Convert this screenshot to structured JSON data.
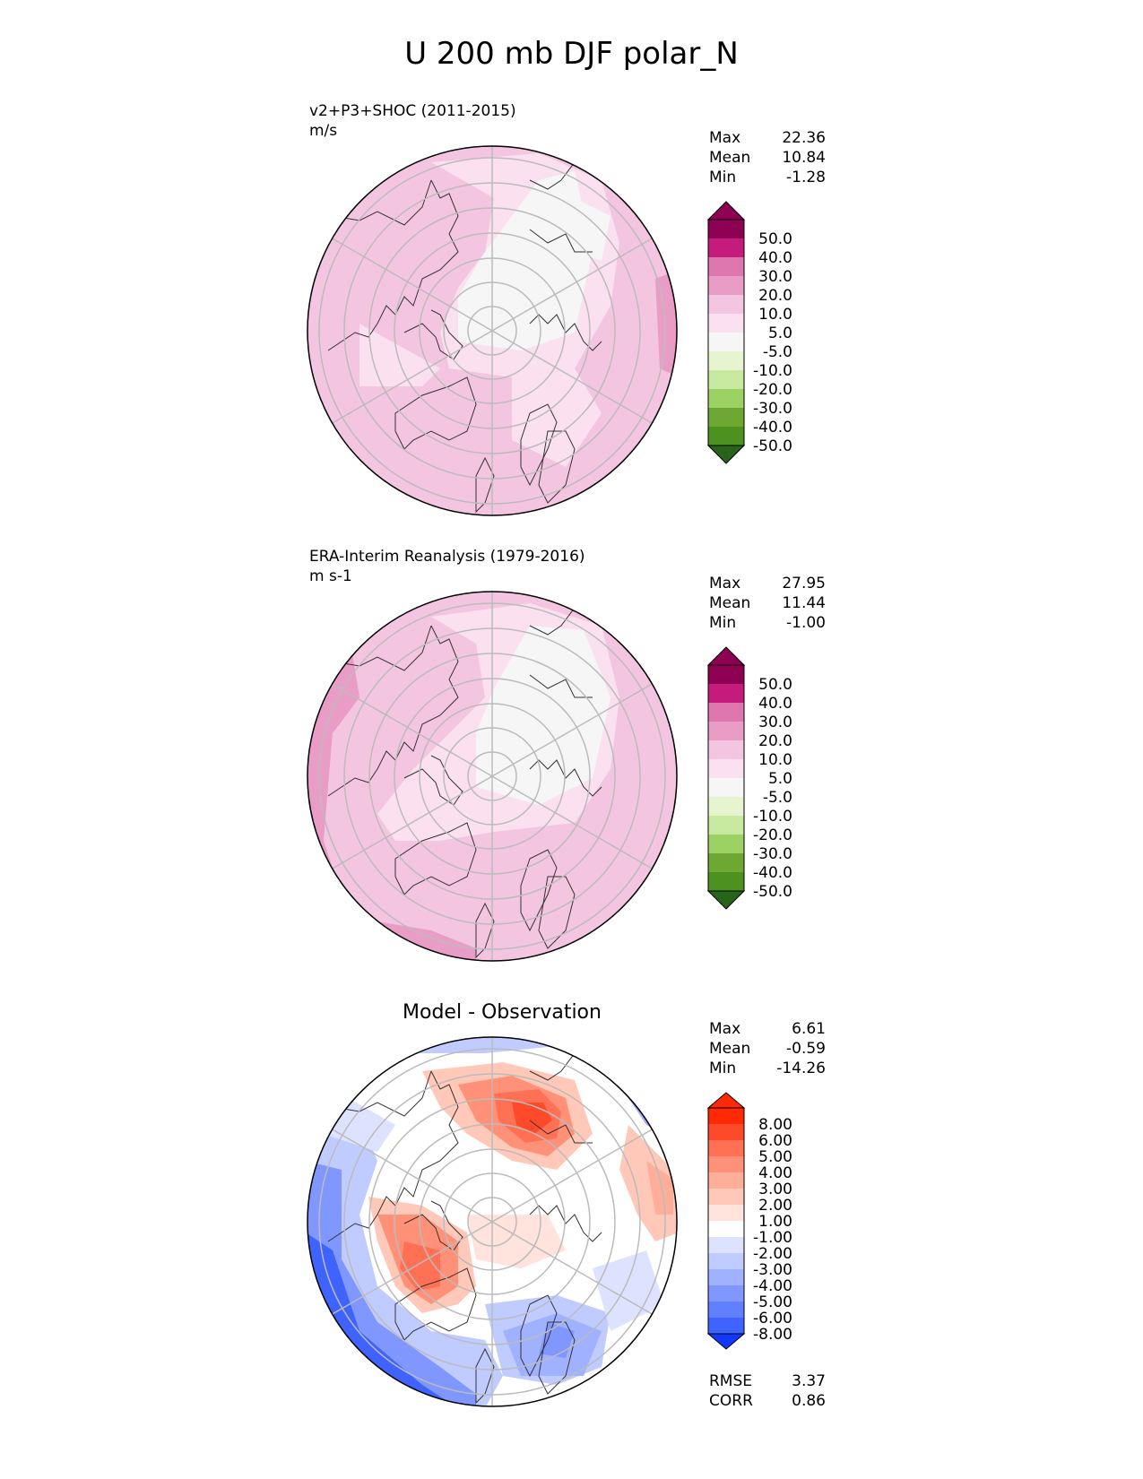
{
  "figure": {
    "title": "U 200 mb DJF polar_N"
  },
  "panels": [
    {
      "title": "v2+P3+SHOC (2011-2015)",
      "units": "m/s",
      "stats": [
        {
          "label": "Max",
          "value": "22.36"
        },
        {
          "label": "Mean",
          "value": "10.84"
        },
        {
          "label": "Min",
          "value": "-1.28"
        }
      ],
      "colorbar": {
        "labels": [
          "50.0",
          "40.0",
          "30.0",
          "20.0",
          "10.0",
          "5.0",
          "-5.0",
          "-10.0",
          "-20.0",
          "-30.0",
          "-40.0",
          "-50.0"
        ],
        "colors": [
          "#8e0152",
          "#c51b7d",
          "#de77ae",
          "#e99dc6",
          "#f4c5e0",
          "#fbe1ef",
          "#f6f6f6",
          "#e6f5d0",
          "#c7e9a0",
          "#9cd164",
          "#6ca832",
          "#4d9221",
          "#276419"
        ]
      }
    },
    {
      "title": "ERA-Interim Reanalysis (1979-2016)",
      "units": "m s-1",
      "stats": [
        {
          "label": "Max",
          "value": "27.95"
        },
        {
          "label": "Mean",
          "value": "11.44"
        },
        {
          "label": "Min",
          "value": "-1.00"
        }
      ],
      "colorbar": {
        "labels": [
          "50.0",
          "40.0",
          "30.0",
          "20.0",
          "10.0",
          "5.0",
          "-5.0",
          "-10.0",
          "-20.0",
          "-30.0",
          "-40.0",
          "-50.0"
        ],
        "colors": [
          "#8e0152",
          "#c51b7d",
          "#de77ae",
          "#e99dc6",
          "#f4c5e0",
          "#fbe1ef",
          "#f6f6f6",
          "#e6f5d0",
          "#c7e9a0",
          "#9cd164",
          "#6ca832",
          "#4d9221",
          "#276419"
        ]
      }
    },
    {
      "title": "Model - Observation",
      "stats": [
        {
          "label": "Max",
          "value": "6.61"
        },
        {
          "label": "Mean",
          "value": "-0.59"
        },
        {
          "label": "Min",
          "value": "-14.26"
        }
      ],
      "extra_stats": [
        {
          "label": "RMSE",
          "value": "3.37"
        },
        {
          "label": "CORR",
          "value": "0.86"
        }
      ],
      "colorbar": {
        "labels": [
          "8.00",
          "6.00",
          "5.00",
          "4.00",
          "3.00",
          "2.00",
          "1.00",
          "-1.00",
          "-2.00",
          "-3.00",
          "-4.00",
          "-5.00",
          "-6.00",
          "-8.00"
        ],
        "colors": [
          "#ff2a05",
          "#ff4a2a",
          "#ff7055",
          "#ff9178",
          "#ffae9a",
          "#ffc8b8",
          "#ffe3dc",
          "#ffffff",
          "#dde3ff",
          "#c0ccff",
          "#a0b2ff",
          "#8097ff",
          "#6080ff",
          "#3f63ff",
          "#1238ff"
        ]
      }
    }
  ]
}
